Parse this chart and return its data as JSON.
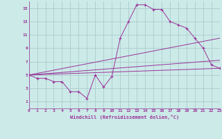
{
  "xlabel": "Windchill (Refroidissement éolien,°C)",
  "background_color": "#cceae8",
  "grid_color": "#aacccc",
  "line_color": "#993399",
  "xlim": [
    0,
    23
  ],
  "ylim": [
    0,
    16
  ],
  "xticks": [
    0,
    1,
    2,
    3,
    4,
    5,
    6,
    7,
    8,
    9,
    10,
    11,
    12,
    13,
    14,
    15,
    16,
    17,
    18,
    19,
    20,
    21,
    22,
    23
  ],
  "yticks": [
    1,
    3,
    5,
    7,
    9,
    11,
    13,
    15
  ],
  "series": [
    {
      "x": [
        0,
        1,
        2,
        3,
        4,
        5,
        6,
        7,
        8,
        9,
        10,
        11,
        12,
        13,
        14,
        15,
        16,
        17,
        18,
        19,
        20,
        21,
        22,
        23
      ],
      "y": [
        5,
        4.5,
        4.5,
        4,
        4,
        2.5,
        2.5,
        1.5,
        5,
        3.2,
        4.8,
        10.5,
        13,
        15.5,
        15.5,
        14.8,
        14.8,
        13,
        12.5,
        12,
        10.5,
        9,
        6.5,
        6
      ]
    },
    {
      "x": [
        0,
        23
      ],
      "y": [
        5,
        6.0
      ]
    },
    {
      "x": [
        0,
        23
      ],
      "y": [
        5,
        7.2
      ]
    },
    {
      "x": [
        0,
        23
      ],
      "y": [
        5,
        10.5
      ]
    }
  ]
}
